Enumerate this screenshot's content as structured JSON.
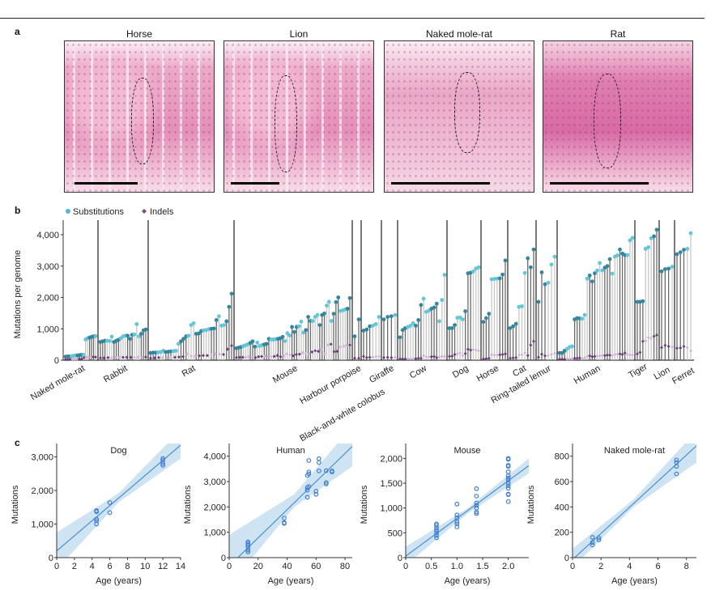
{
  "panel_labels": {
    "a": "a",
    "b": "b",
    "c": "c"
  },
  "panel_a": {
    "images": [
      {
        "title": "Horse"
      },
      {
        "title": "Lion"
      },
      {
        "title": "Naked mole-rat"
      },
      {
        "title": "Rat"
      }
    ]
  },
  "chart_data": [
    {
      "type": "lollipop",
      "panel": "b",
      "ylabel": "Mutations per genome",
      "ylim": [
        0,
        4400
      ],
      "yticks": [
        0,
        1000,
        2000,
        3000,
        4000
      ],
      "ytick_labels": [
        "0",
        "1,000",
        "2,000",
        "3,000",
        "4,000"
      ],
      "legend": {
        "placement": "top-left",
        "entries": [
          {
            "name": "Substitutions",
            "color": "#4fb8cc"
          },
          {
            "name": "Indels",
            "color": "#7a4a86"
          }
        ]
      },
      "colors": {
        "subs_dark": "#35869c",
        "subs_light": "#62c6d6",
        "stem_dark": "#6a6a6a",
        "stem_light": "#c8c8c8",
        "indel_dark": "#6b3a78",
        "indel_light": "#cdb7d0"
      },
      "groups": [
        {
          "name": "Naked mole-rat",
          "substitutions": [
            110,
            120,
            120,
            130,
            140,
            150,
            150,
            160,
            170,
            170,
            660,
            700,
            720,
            740,
            760,
            770
          ],
          "indels": [
            20,
            20,
            25,
            30,
            30,
            35,
            40,
            40,
            80,
            90,
            90,
            95,
            100,
            100
          ]
        },
        {
          "name": "Rabbit",
          "substitutions": [
            580,
            600,
            620,
            620,
            610,
            750,
            580,
            620,
            650,
            700,
            760,
            780,
            780,
            680,
            810,
            820,
            1150,
            760,
            840,
            950,
            980
          ],
          "indels": [
            70,
            70,
            80,
            80,
            90,
            90,
            90,
            90,
            90,
            90,
            100,
            90,
            100
          ]
        },
        {
          "name": "Rat",
          "substitutions": [
            230,
            240,
            240,
            250,
            260,
            300,
            260,
            270,
            280,
            290,
            300,
            520,
            600,
            680,
            760,
            780,
            1120,
            1180,
            840,
            850,
            930,
            950,
            960,
            990,
            1000,
            1010,
            1280,
            1400,
            1100,
            1120,
            1240,
            1700,
            2120
          ],
          "indels": [
            60,
            70,
            80,
            80,
            70,
            80,
            90,
            100,
            110,
            200,
            130,
            120,
            140,
            150,
            150,
            160,
            200,
            190,
            180,
            350,
            460
          ]
        },
        {
          "name": "Mouse",
          "substitutions": [
            380,
            400,
            420,
            450,
            480,
            510,
            550,
            600,
            430,
            560,
            450,
            480,
            500,
            520,
            680,
            660,
            660,
            670,
            680,
            700,
            740,
            610,
            860,
            790,
            1060,
            900,
            1060,
            1080,
            1230,
            880,
            960,
            1380,
            1250,
            1250,
            1380,
            1440,
            1120,
            1440,
            1490,
            1740,
            1860,
            1250,
            1480,
            1850,
            2000,
            1570,
            1590,
            1620,
            1640,
            1980
          ],
          "indels": [
            80,
            90,
            90,
            100,
            110,
            100,
            80,
            110,
            120,
            130,
            100,
            110,
            120,
            150,
            110,
            140,
            200,
            170,
            140,
            180,
            190,
            240,
            210,
            190,
            260,
            300,
            280,
            340,
            200,
            480,
            510,
            270,
            280,
            420,
            450,
            470,
            480
          ]
        },
        {
          "name": "Harbour porpoise",
          "substitutions": [
            760,
            1300
          ],
          "indels": [
            60,
            60
          ]
        },
        {
          "name": "Black-and-white colobus",
          "substitutions": [
            940,
            980,
            1080,
            1100,
            1150,
            1380
          ],
          "indels": [
            120,
            80,
            90,
            100,
            110,
            120
          ]
        },
        {
          "name": "Giraffe",
          "substitutions": [
            1300,
            1380,
            1400,
            1440
          ],
          "indels": [
            80,
            90,
            80,
            90
          ]
        },
        {
          "name": "Cow",
          "substitutions": [
            730,
            960,
            1020,
            1060,
            1100,
            1180,
            1100,
            1280,
            1760,
            1960,
            1540,
            1580,
            1640,
            1680,
            1800,
            1240,
            1920,
            2720
          ],
          "indels": [
            40,
            40,
            40,
            50,
            40,
            40,
            50,
            60,
            60,
            150,
            100,
            100,
            110,
            120,
            80,
            100,
            120,
            120
          ]
        },
        {
          "name": "Dog",
          "substitutions": [
            1020,
            1020,
            1120,
            1350,
            1360,
            1300,
            1560,
            2770,
            2790,
            2830,
            2920,
            2960
          ],
          "indels": [
            120,
            130,
            180,
            200,
            230,
            150,
            210,
            350,
            320,
            340,
            320,
            300
          ]
        },
        {
          "name": "Horse",
          "substitutions": [
            1220,
            1340,
            1480,
            2580,
            2590,
            2600,
            2610,
            2730,
            3180
          ],
          "indels": [
            40,
            50,
            60,
            170,
            160,
            160,
            170,
            180,
            200
          ]
        },
        {
          "name": "Cat",
          "substitutions": [
            1020,
            1080,
            1160,
            1700,
            1720,
            2780,
            3250,
            2960,
            3530
          ],
          "indels": [
            60,
            70,
            80,
            160,
            170,
            230,
            150,
            480,
            600
          ]
        },
        {
          "name": "Ring-tailed lemur",
          "substitutions": [
            1860,
            2800,
            2420,
            2470,
            3050,
            3300
          ],
          "indels": [
            90,
            190,
            140,
            150,
            180,
            220
          ]
        },
        {
          "name": "Human",
          "substitutions": [
            230,
            230,
            300,
            360,
            420,
            440,
            1300,
            1340,
            1330,
            1320,
            1440,
            2600,
            2700,
            2510,
            2770,
            2860,
            3100,
            2860,
            2950,
            3000,
            3220,
            2760,
            3300,
            3340,
            3530,
            3400,
            3350,
            3350,
            3820,
            3900
          ],
          "indels": [
            30,
            30,
            30,
            40,
            40,
            40,
            60,
            60,
            70,
            60,
            70,
            120,
            140,
            110,
            120,
            130,
            140,
            150,
            150,
            160,
            160,
            140,
            180,
            190,
            200,
            180,
            230,
            180,
            170,
            160
          ]
        },
        {
          "name": "Tiger",
          "substitutions": [
            1860,
            1860,
            1880,
            3550,
            3600,
            3890,
            3950,
            4160
          ],
          "indels": [
            200,
            250,
            600,
            620,
            720,
            700,
            760,
            800
          ]
        },
        {
          "name": "Lion",
          "substitutions": [
            2830,
            2900,
            2920,
            2980
          ],
          "indels": [
            400,
            470,
            440,
            420
          ]
        },
        {
          "name": "Ferret",
          "substitutions": [
            3380,
            3440,
            3520,
            3550,
            4050
          ],
          "indels": [
            380,
            390,
            440,
            400,
            300
          ]
        }
      ]
    },
    {
      "type": "scatter",
      "panel": "c",
      "title": "Dog",
      "xlabel": "Age (years)",
      "ylabel": "Mutations",
      "xlim": [
        0,
        14
      ],
      "ylim": [
        0,
        3400
      ],
      "xticks": [
        0,
        2,
        4,
        6,
        8,
        10,
        12,
        14
      ],
      "xtick_labels": [
        "0",
        "2",
        "4",
        "6",
        "8",
        "10",
        "12",
        "14"
      ],
      "yticks": [
        0,
        1000,
        2000,
        3000
      ],
      "ytick_labels": [
        "0",
        "1,000",
        "2,000",
        "3,000"
      ],
      "points": [
        [
          4.5,
          1000
        ],
        [
          4.5,
          1100
        ],
        [
          4.5,
          1150
        ],
        [
          4.5,
          1370
        ],
        [
          4.5,
          1400
        ],
        [
          6,
          1340
        ],
        [
          6,
          1640
        ],
        [
          12,
          2750
        ],
        [
          12,
          2800
        ],
        [
          12,
          2900
        ],
        [
          12,
          2950
        ]
      ],
      "fit": {
        "intercept": 200,
        "slope": 225
      },
      "ci": [
        [
          0,
          -350,
          750
        ],
        [
          7,
          1650,
          1920
        ],
        [
          14,
          2950,
          3800
        ]
      ]
    },
    {
      "type": "scatter",
      "panel": "c",
      "title": "Human",
      "xlabel": "Age (years)",
      "ylabel": "Mutations",
      "xlim": [
        0,
        85
      ],
      "ylim": [
        0,
        4500
      ],
      "xticks": [
        0,
        20,
        40,
        60,
        80
      ],
      "xtick_labels": [
        "0",
        "20",
        "40",
        "60",
        "80"
      ],
      "yticks": [
        0,
        1000,
        2000,
        3000,
        4000
      ],
      "ytick_labels": [
        "0",
        "1,000",
        "2,000",
        "3,000",
        "4,000"
      ],
      "points": [
        [
          13,
          230
        ],
        [
          13,
          300
        ],
        [
          13,
          420
        ],
        [
          13,
          500
        ],
        [
          13,
          560
        ],
        [
          13,
          620
        ],
        [
          38,
          1350
        ],
        [
          38,
          1380
        ],
        [
          38,
          1560
        ],
        [
          54,
          2380
        ],
        [
          54,
          2660
        ],
        [
          54,
          2760
        ],
        [
          54,
          3240
        ],
        [
          55,
          3300
        ],
        [
          55,
          3380
        ],
        [
          55,
          2800
        ],
        [
          55,
          3830
        ],
        [
          60,
          2500
        ],
        [
          60,
          2620
        ],
        [
          62,
          3420
        ],
        [
          62,
          3750
        ],
        [
          62,
          3900
        ],
        [
          67,
          2900
        ],
        [
          67,
          2960
        ],
        [
          67,
          3430
        ],
        [
          71,
          3380
        ],
        [
          71,
          3420
        ]
      ],
      "fit": {
        "intercept": -330,
        "slope": 55.5
      },
      "ci": [
        [
          0,
          -1100,
          900
        ],
        [
          45,
          2000,
          2500
        ],
        [
          85,
          3600,
          5200
        ]
      ]
    },
    {
      "type": "scatter",
      "panel": "c",
      "title": "Mouse",
      "xlabel": "Age (years)",
      "ylabel": "Mutations",
      "xlim": [
        0,
        2.4
      ],
      "ylim": [
        0,
        2300
      ],
      "xticks": [
        0,
        0.5,
        1,
        1.5,
        2
      ],
      "xtick_labels": [
        "0",
        "0.5",
        "1.0",
        "1.5",
        "2.0"
      ],
      "yticks": [
        0,
        500,
        1000,
        1500,
        2000
      ],
      "ytick_labels": [
        "0",
        "500",
        "1,000",
        "1,500",
        "2,000"
      ],
      "points": [
        [
          0.6,
          400
        ],
        [
          0.6,
          450
        ],
        [
          0.6,
          500
        ],
        [
          0.6,
          550
        ],
        [
          0.6,
          600
        ],
        [
          0.6,
          650
        ],
        [
          0.6,
          680
        ],
        [
          1,
          620
        ],
        [
          1,
          680
        ],
        [
          1,
          720
        ],
        [
          1,
          800
        ],
        [
          1,
          860
        ],
        [
          1,
          1080
        ],
        [
          1.38,
          890
        ],
        [
          1.38,
          920
        ],
        [
          1.38,
          1000
        ],
        [
          1.38,
          1050
        ],
        [
          1.38,
          1100
        ],
        [
          1.38,
          1240
        ],
        [
          1.38,
          1390
        ],
        [
          2,
          1130
        ],
        [
          2,
          1270
        ],
        [
          2,
          1280
        ],
        [
          2,
          1400
        ],
        [
          2,
          1450
        ],
        [
          2,
          1500
        ],
        [
          2,
          1560
        ],
        [
          2,
          1600
        ],
        [
          2,
          1650
        ],
        [
          2,
          1730
        ],
        [
          2,
          1840
        ],
        [
          2,
          1860
        ],
        [
          2,
          1980
        ],
        [
          2,
          2000
        ]
      ],
      "fit": {
        "intercept": 30,
        "slope": 760
      },
      "ci": [
        [
          0,
          -150,
          220
        ],
        [
          1.2,
          880,
          990
        ],
        [
          2.4,
          1700,
          2000
        ]
      ]
    },
    {
      "type": "scatter",
      "panel": "c",
      "title": "Naked mole-rat",
      "xlabel": "Age (years)",
      "ylabel": "Mutations",
      "xlim": [
        0,
        8.7
      ],
      "ylim": [
        0,
        900
      ],
      "xticks": [
        0,
        2,
        4,
        6,
        8
      ],
      "xtick_labels": [
        "0",
        "2",
        "4",
        "6",
        "8"
      ],
      "yticks": [
        0,
        200,
        400,
        600,
        800
      ],
      "ytick_labels": [
        "0",
        "200",
        "400",
        "600",
        "800"
      ],
      "points": [
        [
          1.4,
          100
        ],
        [
          1.4,
          120
        ],
        [
          1.4,
          160
        ],
        [
          1.85,
          140
        ],
        [
          1.85,
          155
        ],
        [
          7.3,
          660
        ],
        [
          7.3,
          720
        ],
        [
          7.3,
          750
        ],
        [
          7.3,
          770
        ]
      ],
      "fit": {
        "intercept": -15,
        "slope": 103
      },
      "ci": [
        [
          0,
          -80,
          70
        ],
        [
          4.3,
          400,
          460
        ],
        [
          8.7,
          750,
          1000
        ]
      ]
    }
  ]
}
